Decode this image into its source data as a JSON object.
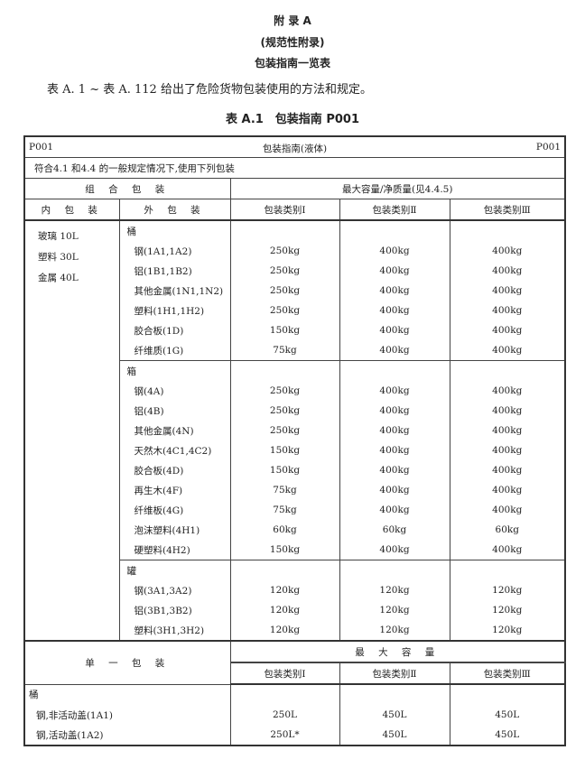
{
  "appendix": {
    "title": "附 录 A",
    "subtitle": "(规范性附录)",
    "heading": "包装指南一览表"
  },
  "intro": "表 A. 1 ~ 表 A. 112 给出了危险货物包装使用的方法和规定。",
  "table_caption": "表 A.1　包装指南 P001",
  "table": {
    "code_left": "P001",
    "title": "包装指南(液体)",
    "code_right": "P001",
    "general": "符合4.1 和4.4 的一般规定情况下,使用下列包装",
    "combined_label": "组 合 包 装",
    "max_net_label": "最大容量/净质量(见4.4.5)",
    "inner_label": "内 包 装",
    "outer_label": "外 包 装",
    "pg": [
      "包装类别Ⅰ",
      "包装类别Ⅱ",
      "包装类别Ⅲ"
    ],
    "inner_items": [
      "玻璃 10L",
      "塑料 30L",
      "金属 40L"
    ],
    "groups": [
      {
        "name": "桶",
        "rows": [
          [
            "钢(1A1,1A2)",
            "250kg",
            "400kg",
            "400kg"
          ],
          [
            "铝(1B1,1B2)",
            "250kg",
            "400kg",
            "400kg"
          ],
          [
            "其他金属(1N1,1N2)",
            "250kg",
            "400kg",
            "400kg"
          ],
          [
            "塑料(1H1,1H2)",
            "250kg",
            "400kg",
            "400kg"
          ],
          [
            "胶合板(1D)",
            "150kg",
            "400kg",
            "400kg"
          ],
          [
            "纤维质(1G)",
            "75kg",
            "400kg",
            "400kg"
          ]
        ]
      },
      {
        "name": "箱",
        "rows": [
          [
            "钢(4A)",
            "250kg",
            "400kg",
            "400kg"
          ],
          [
            "铝(4B)",
            "250kg",
            "400kg",
            "400kg"
          ],
          [
            "其他金属(4N)",
            "250kg",
            "400kg",
            "400kg"
          ],
          [
            "天然木(4C1,4C2)",
            "150kg",
            "400kg",
            "400kg"
          ],
          [
            "胶合板(4D)",
            "150kg",
            "400kg",
            "400kg"
          ],
          [
            "再生木(4F)",
            "75kg",
            "400kg",
            "400kg"
          ],
          [
            "纤维板(4G)",
            "75kg",
            "400kg",
            "400kg"
          ],
          [
            "泡沫塑料(4H1)",
            "60kg",
            "60kg",
            "60kg"
          ],
          [
            "硬塑料(4H2)",
            "150kg",
            "400kg",
            "400kg"
          ]
        ]
      },
      {
        "name": "罐",
        "rows": [
          [
            "钢(3A1,3A2)",
            "120kg",
            "120kg",
            "120kg"
          ],
          [
            "铝(3B1,3B2)",
            "120kg",
            "120kg",
            "120kg"
          ],
          [
            "塑料(3H1,3H2)",
            "120kg",
            "120kg",
            "120kg"
          ]
        ]
      }
    ],
    "single_label": "单 一 包 装",
    "max_cap_label": "最 大 容 量",
    "single_group": "桶",
    "single_rows": [
      [
        "钢,非活动盖(1A1)",
        "250L",
        "450L",
        "450L"
      ],
      [
        "钢,活动盖(1A2)",
        "250L*",
        "450L",
        "450L"
      ]
    ]
  }
}
